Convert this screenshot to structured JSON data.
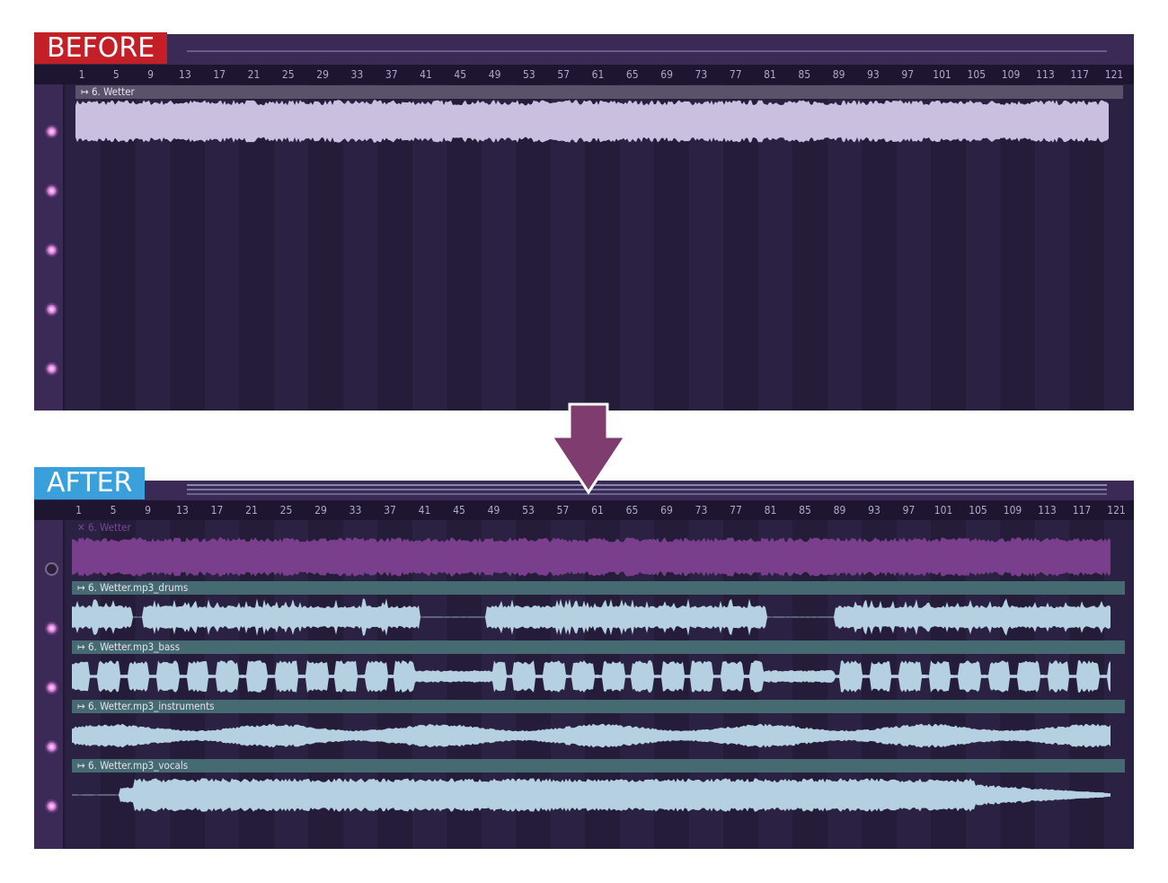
{
  "labels": {
    "before": "BEFORE",
    "after": "AFTER"
  },
  "ruler": {
    "ticks": [
      "1",
      "5",
      "9",
      "13",
      "17",
      "21",
      "25",
      "29",
      "33",
      "37",
      "41",
      "45",
      "49",
      "53",
      "57",
      "61",
      "65",
      "69",
      "73",
      "77",
      "81",
      "85",
      "89",
      "93",
      "97",
      "101",
      "105",
      "109",
      "113",
      "117",
      "121"
    ]
  },
  "before": {
    "clips": [
      {
        "name": "6. Wetter",
        "icon": "arrow-clip-icon"
      }
    ]
  },
  "after": {
    "clips": [
      {
        "name": "6. Wetter",
        "icon": "muted-x-icon",
        "state": "muted"
      },
      {
        "name": "6. Wetter.mp3_drums",
        "icon": "arrow-clip-icon"
      },
      {
        "name": "6. Wetter.mp3_bass",
        "icon": "arrow-clip-icon"
      },
      {
        "name": "6. Wetter.mp3_instruments",
        "icon": "arrow-clip-icon"
      },
      {
        "name": "6. Wetter.mp3_vocals",
        "icon": "arrow-clip-icon"
      }
    ]
  },
  "colors": {
    "before_label": "#c41f26",
    "after_label": "#3aa0dc",
    "arrow": "#7e3d6e",
    "wave_original": "#cbbfe0",
    "wave_muted": "#7a3f8c",
    "wave_stem": "#b5d0e0"
  }
}
